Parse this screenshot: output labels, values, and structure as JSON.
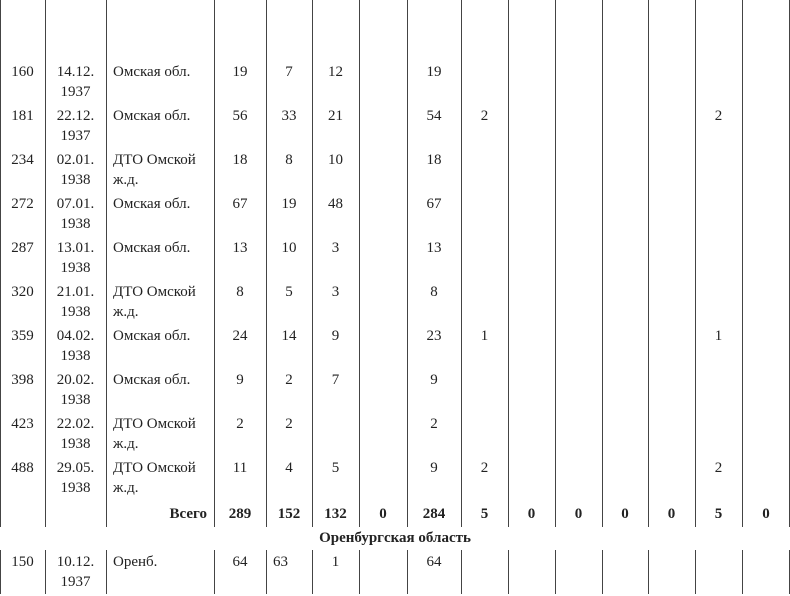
{
  "rows": [
    [
      "160",
      "14.12.\n1937",
      "Омская обл.",
      "19",
      "7",
      "12",
      "",
      "19",
      "",
      "",
      "",
      "",
      "",
      "",
      ""
    ],
    [
      "181",
      "22.12.\n1937",
      "Омская обл.",
      "56",
      "33",
      "21",
      "",
      "54",
      "2",
      "",
      "",
      "",
      "",
      "2",
      ""
    ],
    [
      "234",
      "02.01.\n1938",
      "ДТО Омской\nж.д.",
      "18",
      "8",
      "10",
      "",
      "18",
      "",
      "",
      "",
      "",
      "",
      "",
      ""
    ],
    [
      "272",
      "07.01.\n1938",
      "Омская обл.",
      "67",
      "19",
      "48",
      "",
      "67",
      "",
      "",
      "",
      "",
      "",
      "",
      ""
    ],
    [
      "287",
      "13.01.\n1938",
      "Омская обл.",
      "13",
      "10",
      "3",
      "",
      "13",
      "",
      "",
      "",
      "",
      "",
      "",
      ""
    ],
    [
      "320",
      "21.01.\n1938",
      "ДТО Омской\nж.д.",
      "8",
      "5",
      "3",
      "",
      "8",
      "",
      "",
      "",
      "",
      "",
      "",
      ""
    ],
    [
      "359",
      "04.02.\n1938",
      "Омская обл.",
      "24",
      "14",
      "9",
      "",
      "23",
      "1",
      "",
      "",
      "",
      "",
      "1",
      ""
    ],
    [
      "398",
      "20.02.\n1938",
      "Омская обл.",
      "9",
      "2",
      "7",
      "",
      "9",
      "",
      "",
      "",
      "",
      "",
      "",
      ""
    ],
    [
      "423",
      "22.02.\n1938",
      "ДТО Омской\nж.д.",
      "2",
      "2",
      "",
      "",
      "2",
      "",
      "",
      "",
      "",
      "",
      "",
      ""
    ],
    [
      "488",
      "29.05.\n1938",
      "ДТО Омской\nж.д.",
      "11",
      "4",
      "5",
      "",
      "9",
      "2",
      "",
      "",
      "",
      "",
      "2",
      ""
    ]
  ],
  "total": [
    "",
    "",
    "Всего",
    "289",
    "152",
    "132",
    "0",
    "284",
    "5",
    "0",
    "0",
    "0",
    "0",
    "5",
    "0"
  ],
  "section_title": "Оренбургская область",
  "section_rows": [
    [
      "150",
      "10.12.\n1937",
      "Оренб.",
      "64",
      "63",
      "1",
      "",
      "64",
      "",
      "",
      "",
      "",
      "",
      "",
      ""
    ]
  ]
}
